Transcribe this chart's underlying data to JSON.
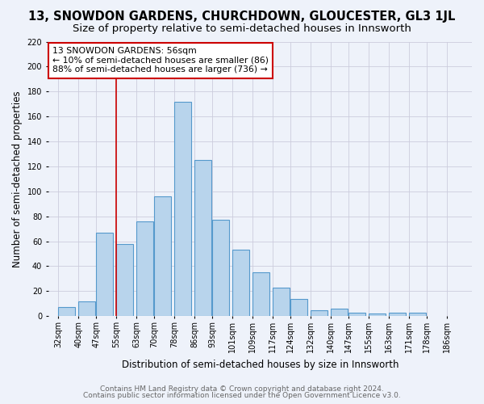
{
  "title": "13, SNOWDON GARDENS, CHURCHDOWN, GLOUCESTER, GL3 1JL",
  "subtitle": "Size of property relative to semi-detached houses in Innsworth",
  "xlabel": "Distribution of semi-detached houses by size in Innsworth",
  "ylabel": "Number of semi-detached properties",
  "bin_labels": [
    "32sqm",
    "40sqm",
    "47sqm",
    "55sqm",
    "63sqm",
    "70sqm",
    "78sqm",
    "86sqm",
    "93sqm",
    "101sqm",
    "109sqm",
    "117sqm",
    "124sqm",
    "132sqm",
    "140sqm",
    "147sqm",
    "155sqm",
    "163sqm",
    "171sqm",
    "178sqm",
    "186sqm"
  ],
  "bar_values": [
    7,
    12,
    67,
    58,
    76,
    96,
    172,
    125,
    77,
    53,
    35,
    23,
    14,
    5,
    6,
    3,
    2,
    3,
    3
  ],
  "bar_left_edges": [
    32,
    40,
    47,
    55,
    63,
    70,
    78,
    86,
    93,
    101,
    109,
    117,
    124,
    132,
    140,
    147,
    155,
    163,
    171
  ],
  "bar_widths": [
    7,
    7,
    7,
    7,
    7,
    7,
    7,
    7,
    7,
    7,
    7,
    7,
    7,
    7,
    7,
    7,
    7,
    7,
    7
  ],
  "extra_labels": [
    "178sqm",
    "186sqm"
  ],
  "bar_color": "#b8d4ec",
  "bar_edge_color": "#5599cc",
  "highlight_x": 55,
  "highlight_color": "#cc0000",
  "annotation_text": "13 SNOWDON GARDENS: 56sqm\n← 10% of semi-detached houses are smaller (86)\n88% of semi-detached houses are larger (736) →",
  "annotation_box_color": "#ffffff",
  "annotation_box_edge": "#cc0000",
  "ylim": [
    0,
    220
  ],
  "yticks": [
    0,
    20,
    40,
    60,
    80,
    100,
    120,
    140,
    160,
    180,
    200,
    220
  ],
  "xlim_left": 28,
  "xlim_right": 196,
  "footer1": "Contains HM Land Registry data © Crown copyright and database right 2024.",
  "footer2": "Contains public sector information licensed under the Open Government Licence v3.0.",
  "bg_color": "#eef2fa",
  "plot_bg_color": "#eef2fa",
  "grid_color": "#ccccdd",
  "title_fontsize": 10.5,
  "subtitle_fontsize": 9.5,
  "axis_label_fontsize": 8.5,
  "tick_fontsize": 7,
  "annotation_fontsize": 7.8,
  "footer_fontsize": 6.5
}
